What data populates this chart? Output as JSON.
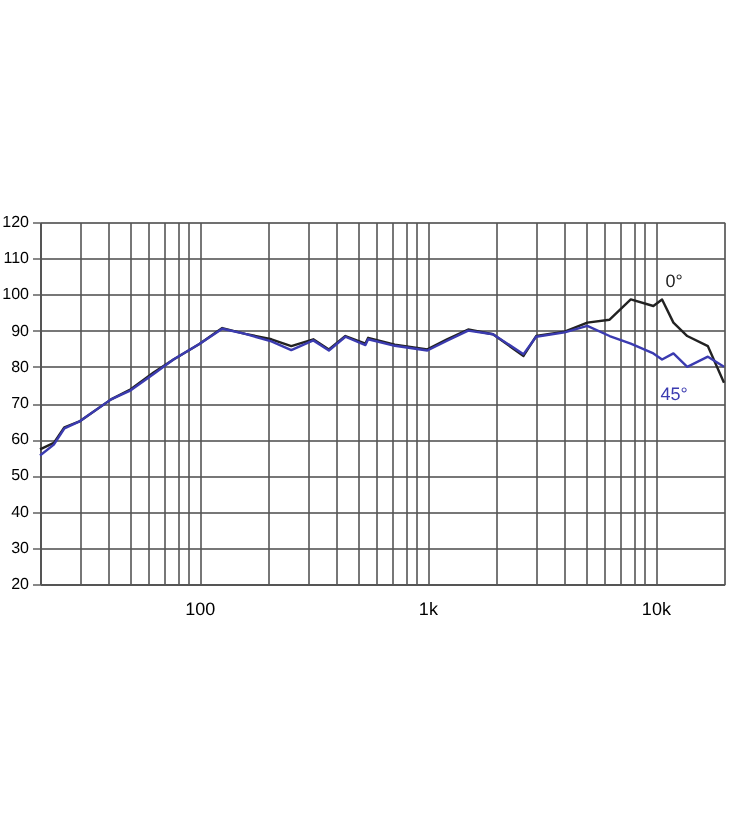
{
  "chart_data": {
    "type": "line",
    "x": [
      20,
      23,
      25.6,
      30,
      41,
      50,
      63,
      77,
      100,
      126,
      159,
      207,
      253,
      316,
      370,
      437,
      535,
      550,
      720,
      1000,
      1220,
      1510,
      1940,
      2640,
      3000,
      4000,
      5030,
      6300,
      7800,
      9800,
      10700,
      12000,
      13800,
      17000,
      20000
    ],
    "series": [
      {
        "name": "0°",
        "color": "#222222",
        "values": [
          57.2,
          59,
          63.3,
          65,
          71,
          73.8,
          78.4,
          82,
          86.3,
          90.7,
          89.1,
          87.6,
          85.7,
          87.6,
          84.8,
          88.5,
          86.4,
          88,
          86.1,
          84.8,
          87.6,
          90.3,
          89,
          83,
          88.5,
          89.7,
          92.2,
          93,
          98.6,
          96.8,
          98.6,
          92.2,
          88.5,
          85.7,
          75.6
        ]
      },
      {
        "name": "45°",
        "color": "#3b3bb0",
        "values": [
          55.5,
          58.5,
          63,
          65,
          71,
          73.5,
          78,
          82,
          86.3,
          90.5,
          89.1,
          87,
          84.6,
          87.3,
          84.5,
          88.3,
          86,
          87.6,
          85.8,
          84.5,
          87.2,
          90,
          89,
          83.5,
          88.3,
          89.5,
          91.3,
          88.5,
          86.4,
          83.7,
          82,
          83.7,
          80,
          82.8,
          80
        ]
      }
    ],
    "xlim": [
      20,
      20000
    ],
    "xticks": [
      {
        "value": 20,
        "label": null
      },
      {
        "value": 30,
        "label": null
      },
      {
        "value": 40,
        "label": null
      },
      {
        "value": 50,
        "label": null
      },
      {
        "value": 60,
        "label": null
      },
      {
        "value": 70,
        "label": null
      },
      {
        "value": 80,
        "label": null
      },
      {
        "value": 90,
        "label": null
      },
      100,
      {
        "value": 200,
        "label": null
      },
      {
        "value": 300,
        "label": null
      },
      {
        "value": 400,
        "label": null
      },
      {
        "value": 500,
        "label": null
      },
      {
        "value": 600,
        "label": null
      },
      {
        "value": 700,
        "label": null
      },
      {
        "value": 800,
        "label": null
      },
      {
        "value": 900,
        "label": null
      },
      {
        "value": 1000,
        "label": "1k"
      },
      {
        "value": 2000,
        "label": null
      },
      {
        "value": 3000,
        "label": null
      },
      {
        "value": 4000,
        "label": null
      },
      {
        "value": 5000,
        "label": null
      },
      {
        "value": 6000,
        "label": null
      },
      {
        "value": 7000,
        "label": null
      },
      {
        "value": 8000,
        "label": null
      },
      {
        "value": 9000,
        "label": null
      },
      {
        "value": 10000,
        "label": "10k"
      },
      {
        "value": 20000,
        "label": null
      }
    ],
    "ylim": [
      20,
      120
    ],
    "yticks": [
      20,
      30,
      40,
      50,
      60,
      70,
      80,
      90,
      100,
      110,
      120
    ],
    "log": "x",
    "grid": true,
    "line_style": "solid",
    "marker": "none"
  }
}
